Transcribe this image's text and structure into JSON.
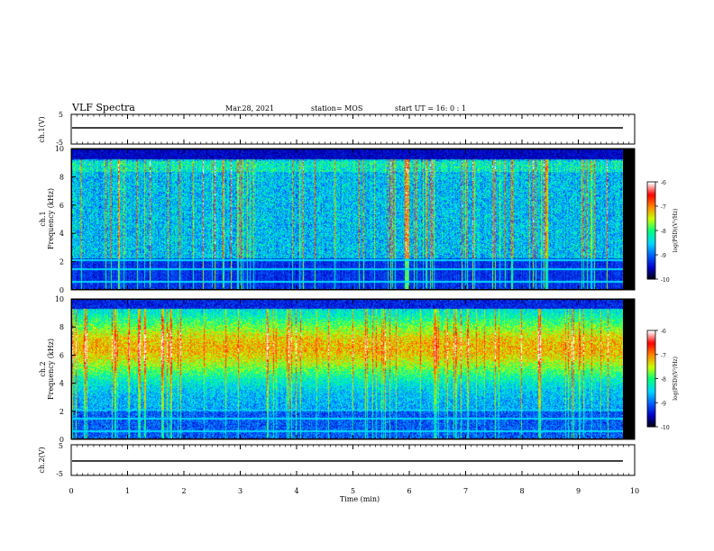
{
  "header": {
    "title": "VLF Spectra",
    "date": "Mar.28, 2021",
    "station": "station= MOS",
    "start": "start  UT =   16: 0  : 1"
  },
  "chart_data": [
    {
      "type": "line",
      "panel": "waveform-ch1",
      "ylabel": "ch.1(V)",
      "ylim": [
        -5,
        5
      ],
      "yticks": [
        "5",
        "-5"
      ],
      "series": [
        {
          "x": [
            0,
            9.85
          ],
          "values": [
            0,
            0
          ]
        }
      ]
    },
    {
      "type": "heatmap",
      "panel": "spectrogram-ch1",
      "ylabel": "ch.1\nFrequency (kHz)",
      "ylim": [
        0,
        10
      ],
      "yticks": [
        "0",
        "2",
        "4",
        "6",
        "8",
        "10"
      ],
      "xlim": [
        0,
        10
      ],
      "x_data_end": 9.85,
      "color_scale": {
        "label": "log(PSD)(V²/Hz)",
        "min": -10,
        "max": -6,
        "ticks": [
          "-6",
          "-7",
          "-8",
          "-9",
          "-10"
        ],
        "colors": [
          "#000000",
          "#0000c8",
          "#0060ff",
          "#00d8ff",
          "#00ff7f",
          "#c8ff00",
          "#ff8800",
          "#ff0000",
          "#ffffff"
        ]
      },
      "background_level": -9.3
    },
    {
      "type": "heatmap",
      "panel": "spectrogram-ch2",
      "ylabel": "ch.2\nFrequency (kHz)",
      "ylim": [
        0,
        10
      ],
      "yticks": [
        "0",
        "2",
        "4",
        "6",
        "8",
        "10"
      ],
      "xlim": [
        0,
        10
      ],
      "x_data_end": 9.85,
      "color_scale": {
        "label": "log(PSD)(V²/Hz)",
        "min": -10,
        "max": -6,
        "ticks": [
          "-6",
          "-7",
          "-8",
          "-9",
          "-10"
        ],
        "colors": [
          "#000000",
          "#0000c8",
          "#0060ff",
          "#00d8ff",
          "#00ff7f",
          "#c8ff00",
          "#ff8800",
          "#ff0000",
          "#ffffff"
        ]
      },
      "background_level": -8.0
    },
    {
      "type": "line",
      "panel": "waveform-ch2",
      "ylabel": "ch.2(V)",
      "ylim": [
        -5,
        5
      ],
      "yticks": [
        "5",
        "-5"
      ],
      "series": [
        {
          "x": [
            0,
            9.85
          ],
          "values": [
            0,
            0
          ]
        }
      ]
    }
  ],
  "xaxis": {
    "label": "Time  (min)",
    "ticks": [
      "0",
      "1",
      "2",
      "3",
      "4",
      "5",
      "6",
      "7",
      "8",
      "9",
      "10"
    ]
  }
}
